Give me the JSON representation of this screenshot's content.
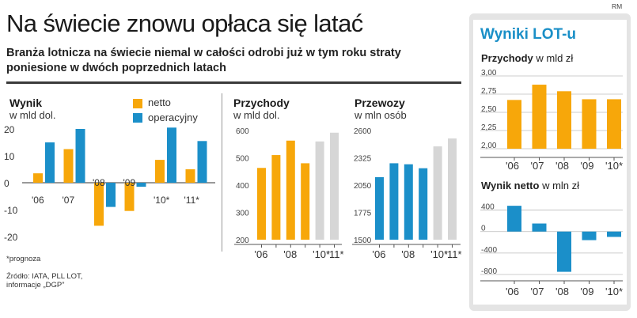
{
  "source_mark": "RM",
  "headline": "Na świecie znowu opłaca się latać",
  "subheadline": "Branża lotnicza na świecie niemal w całości odrobi już w tym roku straty poniesione w dwóch poprzednich latach",
  "colors": {
    "orange": "#f7a70a",
    "blue": "#1b8fc9",
    "gray": "#d6d6d6",
    "title_blue": "#1a8fc7"
  },
  "legend": {
    "netto": "netto",
    "operacyjny": "operacyjny"
  },
  "footnote": "*prognoza",
  "source_text": "Źródło: IATA, PLL LOT, informacje „DGP”",
  "lot_panel_title": "Wyniki LOT-u",
  "chart_data": [
    {
      "id": "wynik",
      "type": "bar",
      "title": "Wynik",
      "unit": "w mld dol.",
      "categories": [
        "'06",
        "'07",
        "'08",
        "'09",
        "'10*",
        "'11*"
      ],
      "series": [
        {
          "name": "netto",
          "color": "#f7a70a",
          "values": [
            3.5,
            12.5,
            -16,
            -10.5,
            8.5,
            5
          ]
        },
        {
          "name": "operacyjny",
          "color": "#1b8fc9",
          "values": [
            15,
            20,
            -9,
            -1.5,
            20.5,
            15.5
          ]
        }
      ],
      "yticks": [
        "20",
        "10",
        "0",
        "-10",
        "-20"
      ],
      "ylim": [
        -20,
        20
      ]
    },
    {
      "id": "przychody",
      "type": "bar",
      "title": "Przychody",
      "unit": "w mld dol.",
      "categories": [
        "'06",
        "'07",
        "'08",
        "'09",
        "'10*",
        "'11*"
      ],
      "xtick_labels": [
        "'06",
        "",
        "'08",
        "",
        "'10*",
        "'11*"
      ],
      "values": [
        463,
        510,
        563,
        480,
        560,
        592
      ],
      "forecast": [
        false,
        false,
        false,
        false,
        true,
        true
      ],
      "yticks": [
        "600",
        "500",
        "400",
        "300",
        "200"
      ],
      "ylim": [
        200,
        600
      ]
    },
    {
      "id": "przewozy",
      "type": "bar",
      "title": "Przewozy",
      "unit": "w mln osób",
      "categories": [
        "'06",
        "'07",
        "'08",
        "'09",
        "'10*",
        "'11*"
      ],
      "xtick_labels": [
        "'06",
        "",
        "'08",
        "",
        "'10*",
        "'11*"
      ],
      "values": [
        2130,
        2270,
        2260,
        2220,
        2440,
        2520
      ],
      "forecast": [
        false,
        false,
        false,
        false,
        true,
        true
      ],
      "yticks": [
        "2600",
        "2325",
        "2050",
        "1775",
        "1500"
      ],
      "ylim": [
        1500,
        2600
      ]
    },
    {
      "id": "lot-przychody",
      "type": "bar",
      "title": "Przychody",
      "unit": "w mld zł",
      "categories": [
        "'06",
        "'07",
        "'08",
        "'09",
        "'10*"
      ],
      "values": [
        2.67,
        2.88,
        2.79,
        2.68,
        2.68
      ],
      "yticks": [
        "3,00",
        "2,75",
        "2,50",
        "2,25",
        "2,00"
      ],
      "ylim": [
        2.0,
        3.0
      ]
    },
    {
      "id": "lot-wynik",
      "type": "bar",
      "title": "Wynik netto",
      "unit": "w mln zł",
      "categories": [
        "'06",
        "'07",
        "'08",
        "'09",
        "'10*"
      ],
      "values": [
        480,
        150,
        -750,
        -160,
        -100
      ],
      "yticks": [
        "400",
        "0",
        "-400",
        "-800"
      ],
      "ylim": [
        -800,
        600
      ]
    }
  ]
}
